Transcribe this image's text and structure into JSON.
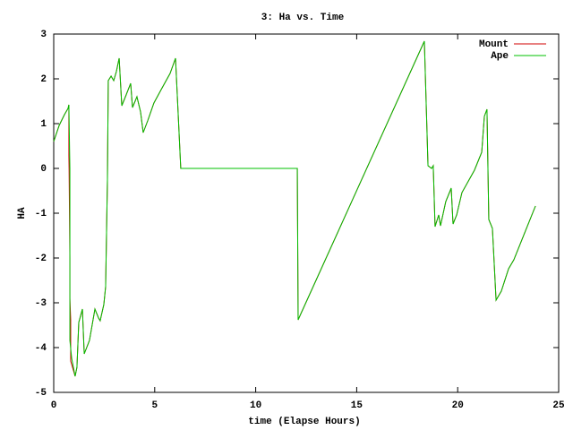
{
  "chart_data": {
    "type": "line",
    "title": "3: Ha vs. Time",
    "x_label": "time (Elapse Hours)",
    "y_label": "HA",
    "xlim": [
      0,
      25
    ],
    "xticks": [
      0,
      5,
      10,
      15,
      20,
      25
    ],
    "ylim": [
      -5,
      3
    ],
    "yticks": [
      -5,
      -4,
      -3,
      -2,
      -1,
      0,
      1,
      2,
      3
    ],
    "legend": "upper right",
    "series": [
      {
        "name": "Mount",
        "color": "#d00000",
        "x": [
          0,
          0.27,
          0.53,
          0.71,
          0.75,
          0.75,
          0.76,
          0.8,
          0.8,
          0.84,
          0.84,
          1.06,
          1.15,
          1.24,
          1.42,
          1.51,
          1.77,
          2.04,
          2.22,
          2.3,
          2.48,
          2.57,
          2.66,
          2.7,
          2.84,
          2.97,
          3.1,
          3.24,
          3.37,
          3.55,
          3.81,
          3.9,
          4.12,
          4.3,
          4.43,
          4.65,
          4.96,
          5.32,
          5.76,
          6.03,
          6.29,
          12.06,
          12.1,
          18.35,
          18.53,
          18.71,
          18.79,
          18.88,
          19.06,
          19.15,
          19.41,
          19.68,
          19.77,
          19.95,
          20.21,
          20.83,
          21.19,
          21.32,
          21.45,
          21.54,
          21.72,
          21.9,
          22.16,
          22.52,
          22.78,
          23.85
        ],
        "values": [
          0.6,
          0.96,
          1.2,
          1.34,
          1.42,
          0.28,
          0,
          -2,
          -2.9,
          -3.38,
          -4.3,
          -4.64,
          -4.44,
          -3.44,
          -3.14,
          -4.14,
          -3.84,
          -3.14,
          -3.34,
          -3.4,
          -3.04,
          -2.64,
          -0.24,
          1.96,
          2.06,
          1.96,
          2.16,
          2.46,
          1.4,
          1.6,
          1.9,
          1.36,
          1.6,
          1.26,
          0.8,
          1.06,
          1.46,
          1.76,
          2.12,
          2.46,
          0,
          0,
          -3.38,
          2.84,
          0.06,
          0,
          0.06,
          -1.3,
          -1.04,
          -1.28,
          -0.74,
          -0.44,
          -1.24,
          -1.04,
          -0.54,
          -0.04,
          0.36,
          1.16,
          1.32,
          -1.14,
          -1.34,
          -2.94,
          -2.74,
          -2.24,
          -2.04,
          -0.84
        ]
      },
      {
        "name": "Ape",
        "color": "#00c000",
        "x": [
          0,
          0.27,
          0.53,
          0.71,
          0.75,
          0.8,
          0.8,
          0.89,
          1.06,
          1.15,
          1.24,
          1.42,
          1.51,
          1.77,
          2.04,
          2.22,
          2.3,
          2.48,
          2.57,
          2.66,
          2.7,
          2.84,
          2.97,
          3.1,
          3.24,
          3.37,
          3.55,
          3.81,
          3.9,
          4.12,
          4.3,
          4.43,
          4.65,
          4.96,
          5.32,
          5.76,
          6.03,
          6.29,
          12.06,
          12.1,
          18.35,
          18.53,
          18.71,
          18.79,
          18.88,
          19.06,
          19.15,
          19.41,
          19.68,
          19.77,
          19.95,
          20.21,
          20.83,
          21.19,
          21.32,
          21.45,
          21.54,
          21.72,
          21.9,
          22.16,
          22.52,
          22.78,
          23.85
        ],
        "values": [
          0.6,
          0.96,
          1.2,
          1.34,
          1.42,
          0,
          -3.84,
          -4.24,
          -4.64,
          -4.44,
          -3.44,
          -3.14,
          -4.14,
          -3.84,
          -3.14,
          -3.34,
          -3.4,
          -3.04,
          -2.64,
          -0.24,
          1.96,
          2.06,
          1.96,
          2.16,
          2.46,
          1.4,
          1.6,
          1.9,
          1.36,
          1.6,
          1.26,
          0.8,
          1.06,
          1.46,
          1.76,
          2.12,
          2.46,
          0,
          0,
          -3.38,
          2.84,
          0.06,
          0,
          0.06,
          -1.3,
          -1.04,
          -1.28,
          -0.74,
          -0.44,
          -1.24,
          -1.04,
          -0.54,
          -0.04,
          0.36,
          1.16,
          1.32,
          -1.14,
          -1.34,
          -2.94,
          -2.74,
          -2.24,
          -2.04,
          -0.84
        ]
      }
    ]
  }
}
